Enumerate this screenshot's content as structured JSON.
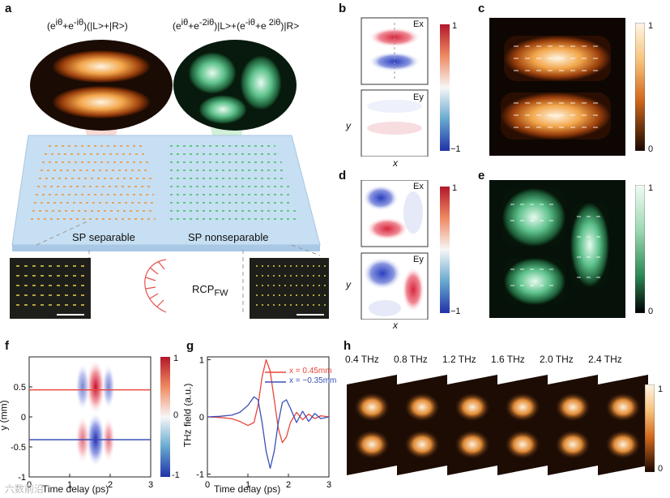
{
  "panels": {
    "a": "a",
    "b": "b",
    "c": "c",
    "d": "d",
    "e": "e",
    "f": "f",
    "g": "g",
    "h": "h"
  },
  "panel_a": {
    "formula_left_a": "(e",
    "formula_left_b": "iθ",
    "formula_left_c": "+e",
    "formula_left_d": "-iθ",
    "formula_left_e": ")(|L>+|R>)",
    "formula_right_a": "(e",
    "formula_right_b": "iθ",
    "formula_right_c": "+e",
    "formula_right_d": "-2iθ",
    "formula_right_e": ")|L>+(e",
    "formula_right_f": "-iθ",
    "formula_right_g": "+e",
    "formula_right_h": " 2iθ",
    "formula_right_i": ")|R>",
    "label_left": "SP  separable",
    "label_right": "SP  nonseparable",
    "rcp_main": "RCP",
    "rcp_sub": "FW"
  },
  "panel_b": {
    "ex": "Ex",
    "ey": "Ey",
    "cb_top": "1",
    "cb_bottom": "−1",
    "xlabel": "x",
    "ylabel": "y"
  },
  "panel_c": {
    "cb_top": "1",
    "cb_bottom": "0"
  },
  "panel_d": {
    "ex": "Ex",
    "ey": "Ey",
    "cb_top": "1",
    "cb_bottom": "−1",
    "xlabel": "x",
    "ylabel": "y"
  },
  "panel_e": {
    "cb_top": "1",
    "cb_bottom": "0"
  },
  "panel_h": {
    "freqs": [
      "0.4 THz",
      "0.8 THz",
      "1.2 THz",
      "1.6 THz",
      "2.0 THz",
      "2.4 THz"
    ],
    "cb_top": "1",
    "cb_bottom": "0"
  },
  "watermark": "六数前沿",
  "colors": {
    "orange": "#e8872a",
    "green": "#3fa866",
    "red_line": "#e8463a",
    "blue_line": "#3b4fb8",
    "diverging_red": "#c8102e",
    "diverging_blue": "#2a3fb5"
  },
  "chart_data": [
    {
      "type": "heatmap",
      "panel": "f",
      "title": "",
      "xlabel": "Time delay (ps)",
      "ylabel": "y (mm)",
      "xlim": [
        0,
        3
      ],
      "ylim": [
        -1,
        1
      ],
      "x_ticks": [
        "0",
        "1",
        "2",
        "3"
      ],
      "y_ticks": [
        "0.5",
        "0",
        "-0.5",
        "-1"
      ],
      "colorbar_ticks": [
        "1",
        "0",
        "-1"
      ],
      "lines": [
        {
          "color": "red",
          "y": 0.45
        },
        {
          "color": "blue",
          "y": -0.38
        }
      ]
    },
    {
      "type": "line",
      "panel": "g",
      "title": "",
      "xlabel": "Time delay (ps)",
      "ylabel": "THz field (a.u.)",
      "xlim": [
        0,
        3
      ],
      "ylim": [
        -1.05,
        1.05
      ],
      "x_ticks": [
        "0",
        "1",
        "2",
        "3"
      ],
      "y_ticks": [
        "1",
        "0",
        "-1"
      ],
      "series": [
        {
          "name": "x =  0.45mm",
          "color": "#e8463a",
          "x": [
            0,
            0.3,
            0.6,
            0.8,
            1.0,
            1.15,
            1.25,
            1.35,
            1.45,
            1.55,
            1.65,
            1.75,
            1.85,
            1.95,
            2.05,
            2.2,
            2.35,
            2.5,
            2.65,
            2.8,
            3.0
          ],
          "y": [
            0,
            -0.01,
            -0.03,
            -0.08,
            -0.15,
            -0.1,
            0.2,
            0.7,
            1.0,
            0.8,
            0.3,
            -0.2,
            -0.45,
            -0.35,
            -0.1,
            0.08,
            -0.05,
            0.05,
            -0.03,
            0.02,
            0
          ]
        },
        {
          "name": "x = −0.35mm",
          "color": "#3b4fb8",
          "x": [
            0,
            0.3,
            0.6,
            0.8,
            1.0,
            1.15,
            1.25,
            1.35,
            1.45,
            1.55,
            1.65,
            1.75,
            1.85,
            1.95,
            2.05,
            2.2,
            2.35,
            2.5,
            2.65,
            2.8,
            3.0
          ],
          "y": [
            0,
            0.01,
            0.03,
            0.08,
            0.2,
            0.35,
            0.3,
            -0.1,
            -0.6,
            -0.9,
            -0.6,
            -0.1,
            0.25,
            0.3,
            0.15,
            -0.1,
            0.1,
            -0.08,
            0.06,
            -0.03,
            0
          ]
        }
      ]
    }
  ]
}
